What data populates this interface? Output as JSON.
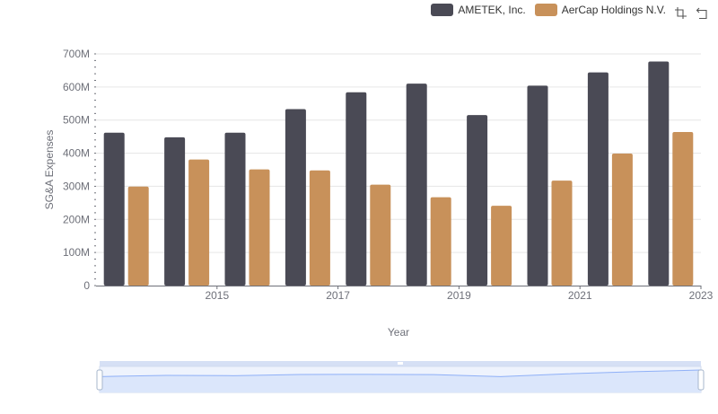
{
  "colors": {
    "ametek": "#4a4a55",
    "aercap": "#c8915a",
    "grid": "#e6e6e6",
    "axis": "#6e7079",
    "zoom_fill": "#dbe6fb",
    "zoom_line": "#8fb0f7",
    "zoom_handle_bar": "#d6e0f5"
  },
  "toolbox": {
    "icons": [
      "zoom-icon",
      "restore-icon"
    ]
  },
  "chart_data": {
    "type": "bar",
    "x": [
      2014,
      2015,
      2016,
      2017,
      2018,
      2019,
      2020,
      2021,
      2022,
      2023
    ],
    "xtick_labels": [
      "2015",
      "2017",
      "2019",
      "2021",
      "2023"
    ],
    "xlabel": "Year",
    "ylabel": "SG&A Expenses",
    "ylim": [
      0,
      700000000
    ],
    "ytick_labels": [
      "0",
      "100M",
      "200M",
      "300M",
      "400M",
      "500M",
      "600M",
      "700M"
    ],
    "grid": true,
    "legend_position": "top-right",
    "series": [
      {
        "name": "AMETEK, Inc.",
        "values": [
          462000000,
          448000000,
          462000000,
          533000000,
          584000000,
          610000000,
          515000000,
          604000000,
          644000000,
          677000000
        ]
      },
      {
        "name": "AerCap Holdings N.V.",
        "values": [
          299000000,
          381000000,
          351000000,
          348000000,
          305000000,
          267000000,
          241000000,
          317000000,
          399000000,
          464000000
        ]
      }
    ]
  }
}
